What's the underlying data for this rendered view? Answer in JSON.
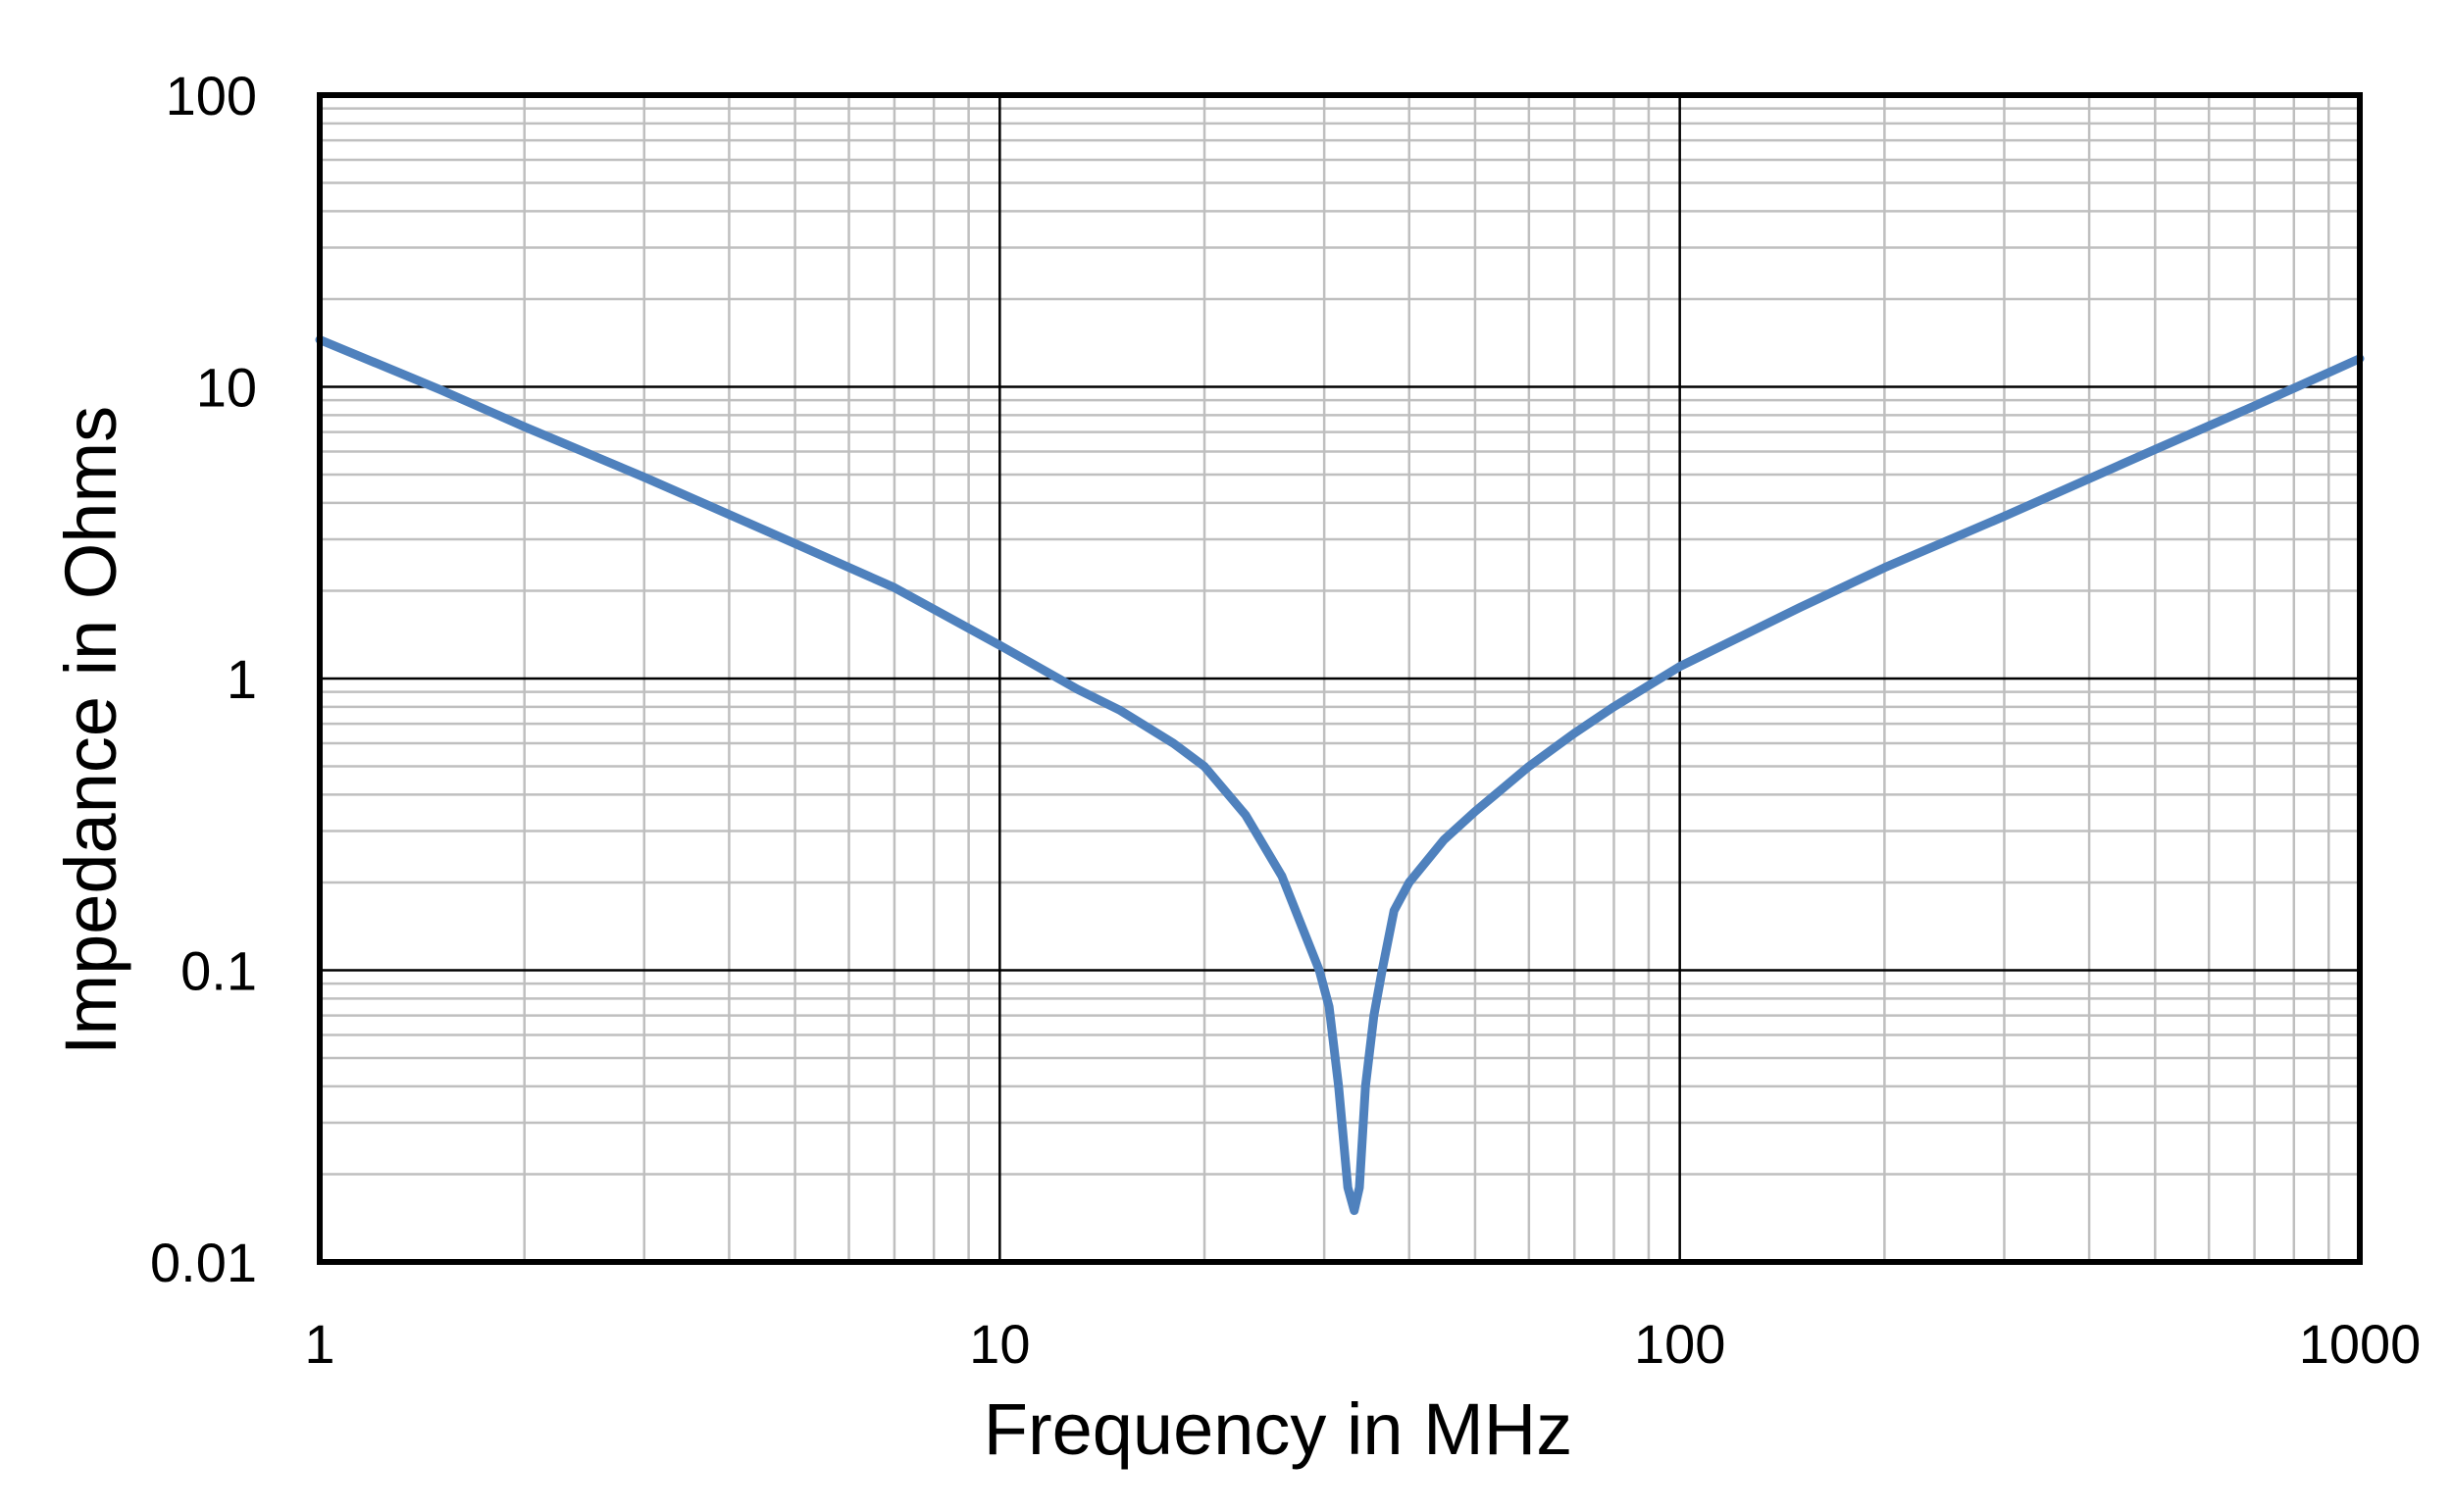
{
  "chart_data": {
    "type": "line",
    "xlabel": "Frequency in MHz",
    "ylabel": "Impedance in Ohms",
    "x_scale": "log",
    "y_scale": "log",
    "xlim": [
      1,
      1000
    ],
    "ylim": [
      0.01,
      100
    ],
    "x_ticks": [
      "1",
      "10",
      "100",
      "1000"
    ],
    "y_ticks": [
      "0.01",
      "0.1",
      "1",
      "10",
      "100"
    ],
    "grid": true,
    "legend": "none",
    "colors": {
      "series": "#4F81BD",
      "major_grid": "#000000",
      "minor_grid": "#BFBFBF",
      "frame": "#000000"
    },
    "series": [
      {
        "x": [
          1,
          1.5,
          2,
          3,
          4,
          5,
          7,
          10,
          13,
          15,
          18,
          20,
          23,
          26,
          29.5,
          30.5,
          31.5,
          32.5,
          33.2,
          33.8,
          34.5,
          35.5,
          36.5,
          38,
          40,
          45,
          50,
          60,
          70,
          80,
          100,
          150,
          200,
          300,
          500,
          700,
          1000
        ],
        "y": [
          14.5,
          9.8,
          7.3,
          4.9,
          3.65,
          2.9,
          2.05,
          1.3,
          0.92,
          0.78,
          0.6,
          0.5,
          0.34,
          0.21,
          0.1,
          0.075,
          0.04,
          0.018,
          0.015,
          0.018,
          0.04,
          0.07,
          0.1,
          0.16,
          0.2,
          0.28,
          0.35,
          0.5,
          0.65,
          0.8,
          1.1,
          1.75,
          2.4,
          3.6,
          6.1,
          8.6,
          12.5
        ]
      }
    ]
  }
}
